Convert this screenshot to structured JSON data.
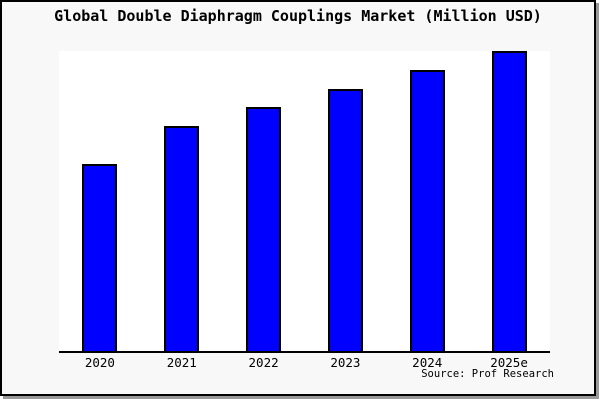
{
  "frame": {
    "background_color": "#f8f8f8",
    "border_color": "#000000",
    "shadow_color": "#999999",
    "plot_background_color": "#ffffff",
    "axis_color": "#000000"
  },
  "chart_data": {
    "type": "bar",
    "title": "Global Double Diaphragm Couplings Market (Million USD)",
    "categories": [
      "2020",
      "2021",
      "2022",
      "2023",
      "2024",
      "2025e"
    ],
    "values": [
      100,
      120,
      130,
      140,
      150,
      160
    ],
    "units": "relative index (no y-axis tick labels shown; values estimated from bar heights, 2020 = 100)",
    "ylim": [
      0,
      160
    ],
    "xlabel": "",
    "ylabel": "",
    "grid": false,
    "legend": "none",
    "y_axis_visible": false,
    "bar_color": "#0000ff",
    "bar_border_color": "#000000",
    "source": "Source: Prof Research"
  }
}
